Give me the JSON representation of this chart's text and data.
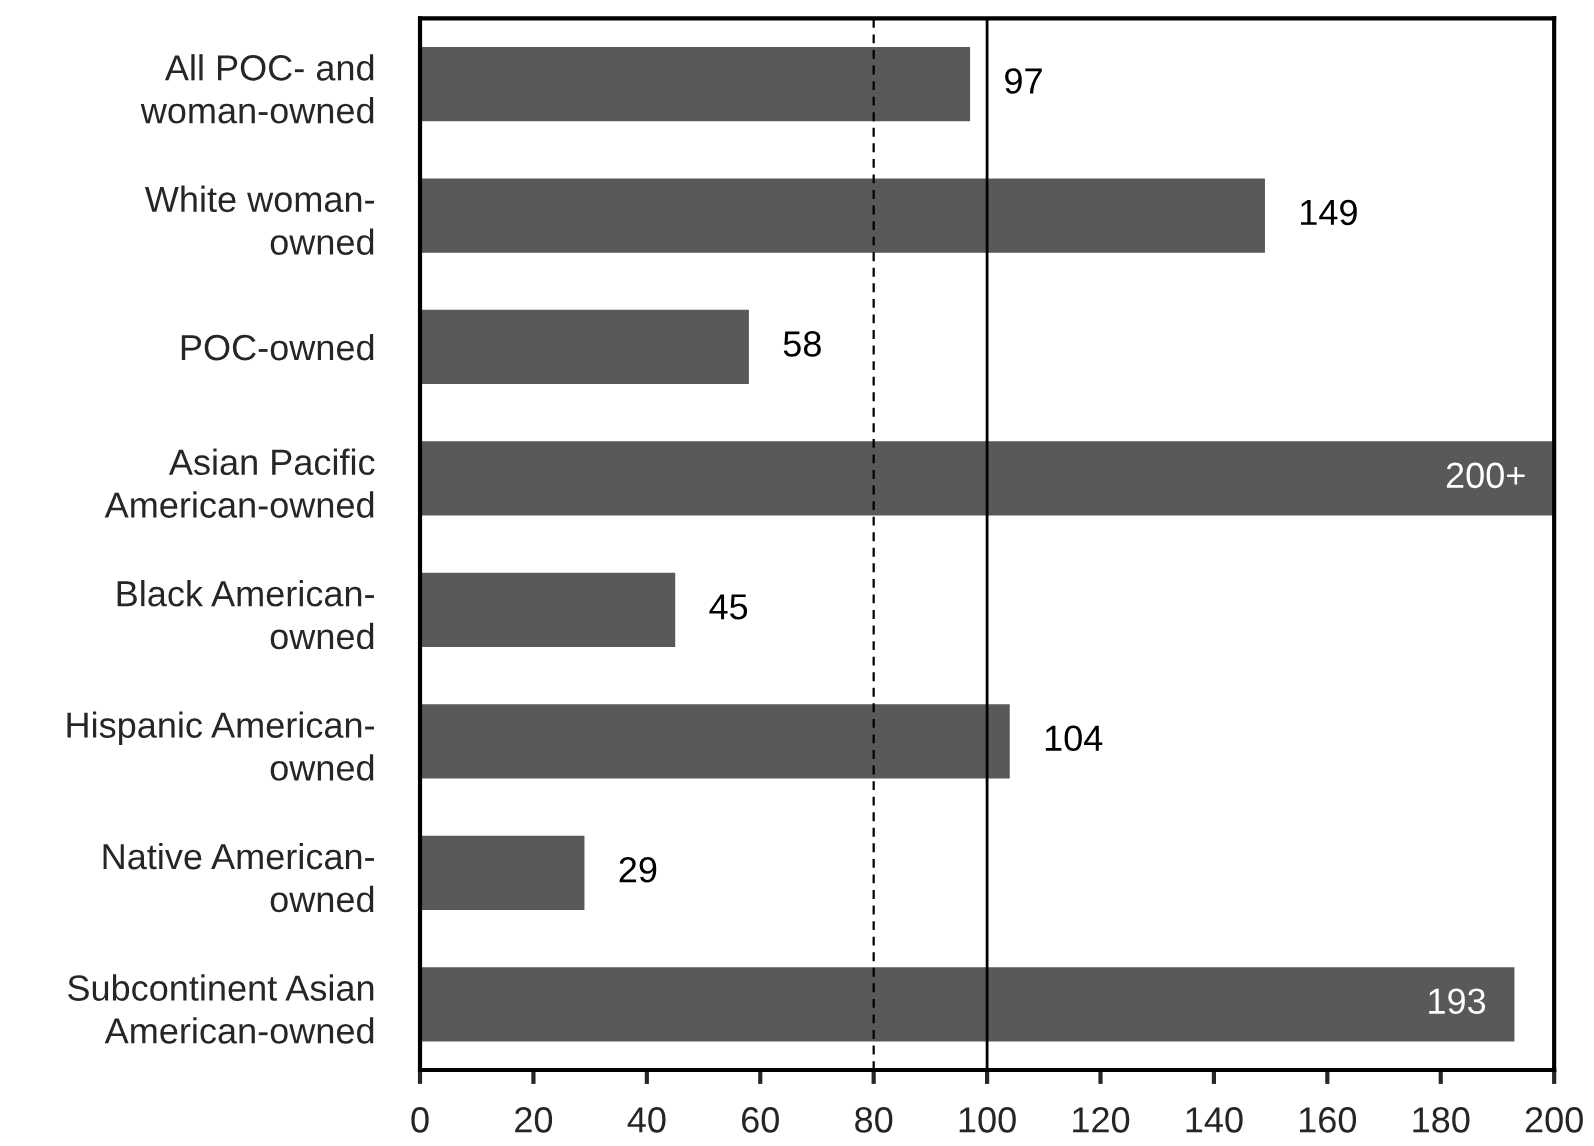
{
  "chart_data": {
    "type": "bar",
    "orientation": "horizontal",
    "categories": [
      "All POC- and\nwoman-owned",
      "White woman-\nowned",
      "POC-owned",
      "Asian Pacific\nAmerican-owned",
      "Black American-\nowned",
      "Hispanic American-\nowned",
      "Native American-\nowned",
      "Subcontinent Asian\nAmerican-owned"
    ],
    "values": [
      97,
      149,
      58,
      200,
      45,
      104,
      29,
      193
    ],
    "value_labels": [
      "97",
      "149",
      "58",
      "200+",
      "45",
      "104",
      "29",
      "193"
    ],
    "color": "#595959",
    "xlim": [
      0,
      200
    ],
    "xticks": [
      0,
      20,
      40,
      60,
      80,
      100,
      120,
      140,
      160,
      180,
      200
    ],
    "ref_lines": [
      {
        "axis": "x",
        "value": 80,
        "color": "#000000",
        "line_style": "dashed"
      },
      {
        "axis": "x",
        "value": 100,
        "color": "#000000",
        "line_style": "solid"
      }
    ],
    "grid": false
  }
}
